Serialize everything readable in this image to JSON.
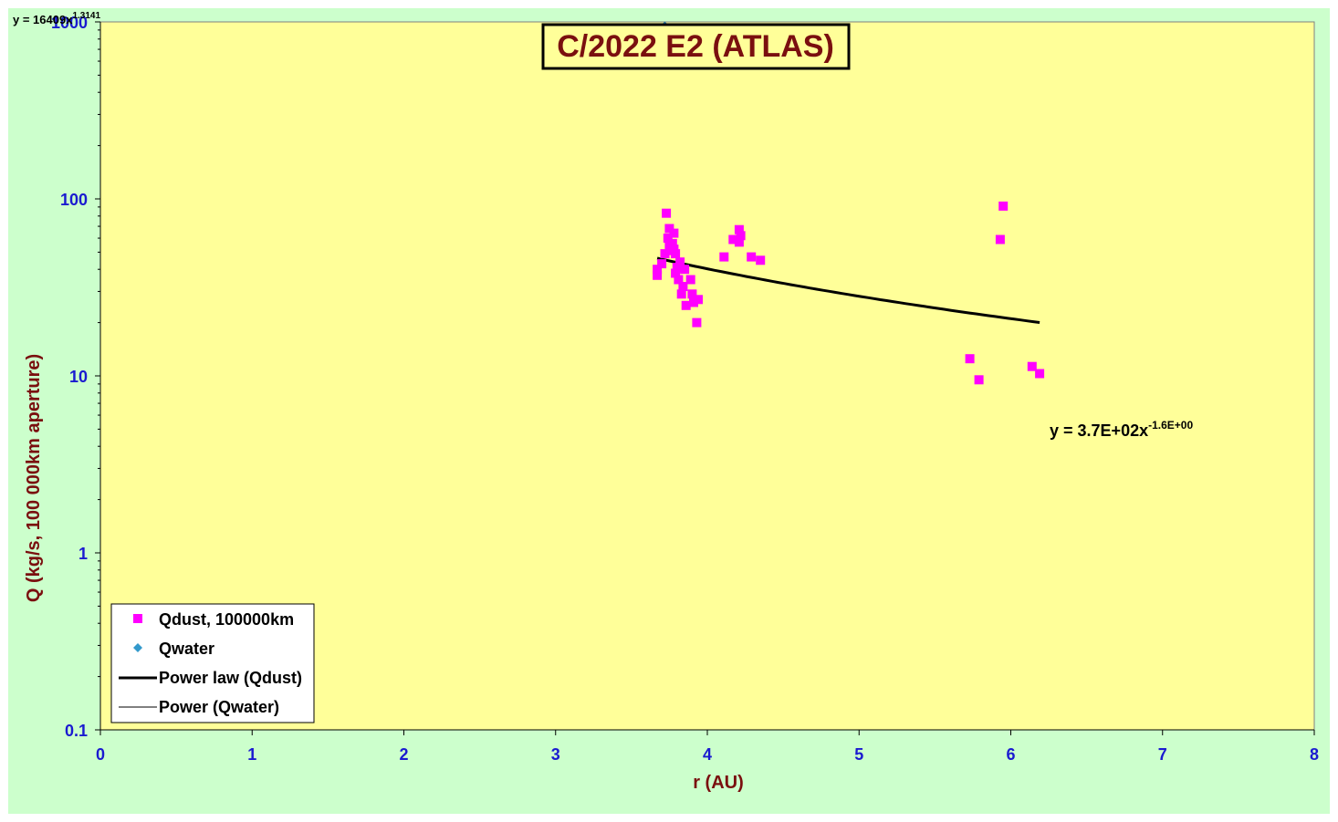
{
  "chart_data": {
    "type": "scatter",
    "title": "C/2022 E2 (ATLAS)",
    "xlabel": "r (AU)",
    "ylabel": "Q (kg/s, 100 000km aperture)",
    "xlim": [
      0,
      8
    ],
    "ylim": [
      0.1,
      1000
    ],
    "yscale": "log",
    "x_ticks": [
      "0",
      "1",
      "2",
      "3",
      "4",
      "5",
      "6",
      "7",
      "8"
    ],
    "y_ticks": [
      "0.1",
      "1",
      "10",
      "100",
      "1000"
    ],
    "legend_position": "bottom-left",
    "colors": {
      "plot_bg": "#ffff99",
      "outer_bg": "#ccffcc",
      "dust": "#ff00ff",
      "water": "#3399cc",
      "fit": "#000000",
      "tick": "#1a1ad0",
      "axis_title": "#7a0f0f"
    },
    "series": [
      {
        "name": "Qdust, 100000km",
        "marker": "square",
        "points": [
          [
            3.67,
            40
          ],
          [
            3.67,
            37
          ],
          [
            3.7,
            43
          ],
          [
            3.72,
            49
          ],
          [
            3.73,
            83
          ],
          [
            3.74,
            60
          ],
          [
            3.75,
            68
          ],
          [
            3.75,
            55
          ],
          [
            3.76,
            51
          ],
          [
            3.77,
            56
          ],
          [
            3.78,
            64
          ],
          [
            3.78,
            52
          ],
          [
            3.79,
            49
          ],
          [
            3.79,
            38
          ],
          [
            3.8,
            41
          ],
          [
            3.81,
            35
          ],
          [
            3.82,
            44
          ],
          [
            3.83,
            29
          ],
          [
            3.84,
            32
          ],
          [
            3.85,
            40
          ],
          [
            3.86,
            25
          ],
          [
            3.89,
            35
          ],
          [
            3.9,
            29
          ],
          [
            3.91,
            26
          ],
          [
            3.94,
            27
          ],
          [
            3.93,
            20
          ],
          [
            4.11,
            47
          ],
          [
            4.17,
            59
          ],
          [
            4.21,
            67
          ],
          [
            4.21,
            57
          ],
          [
            4.22,
            62
          ],
          [
            4.29,
            47
          ],
          [
            4.35,
            45
          ],
          [
            5.73,
            12.5
          ],
          [
            5.79,
            9.5
          ],
          [
            5.93,
            59
          ],
          [
            5.95,
            91
          ],
          [
            6.14,
            11.3
          ],
          [
            6.19,
            10.3
          ]
        ]
      },
      {
        "name": "Qwater",
        "marker": "diamond",
        "points": [
          [
            3.72,
            930
          ],
          [
            3.74,
            880
          ],
          [
            3.77,
            860
          ]
        ]
      }
    ],
    "fits": [
      {
        "name": "Power law (Qdust)",
        "a": 370,
        "b": -1.6,
        "x_range": [
          3.67,
          6.19
        ],
        "equation": "y = 3.7E+02x",
        "exponent_text": "-1.6E+00"
      },
      {
        "name": "Power (Qwater)",
        "equation": "y = 16409x",
        "exponent_text": "1.3141"
      }
    ]
  }
}
